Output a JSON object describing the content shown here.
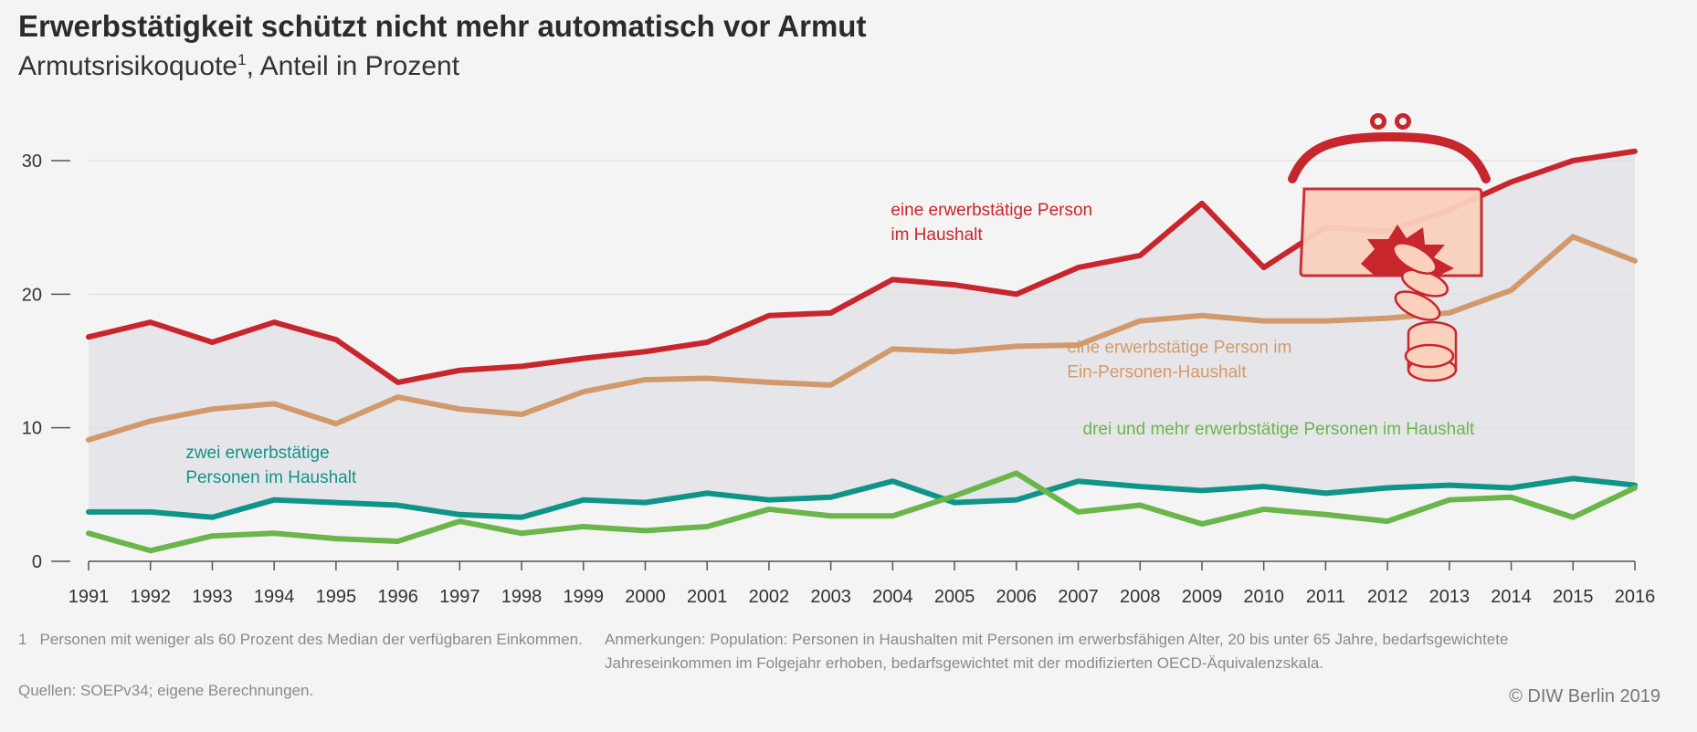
{
  "title": "Erwerbstätigkeit schützt nicht mehr automatisch vor Armut",
  "subtitle": "Armutsrisikoquote",
  "subtitle_footnote_mark": "1",
  "subtitle_suffix": ", Anteil in Prozent",
  "footnote": {
    "number": "1",
    "text": "Personen mit weniger als 60 Prozent des Median der verfügbaren Einkommen."
  },
  "notes": "Anmerkungen: Population: Personen in Haushalten mit Personen im erwerbsfähigen Alter, 20 bis unter 65 Jahre, bedarfsgewichtete Jahreseinkommen im Folgejahr erhoben, bedarfsgewichtet mit der modifizierten OECD-Äquivalenzskala.",
  "sources": "Quellen: SOEPv34; eigene Berechnungen.",
  "copyright": "© DIW Berlin 2019",
  "chart_data": {
    "type": "line",
    "x": [
      1991,
      1992,
      1993,
      1994,
      1995,
      1996,
      1997,
      1998,
      1999,
      2000,
      2001,
      2002,
      2003,
      2004,
      2005,
      2006,
      2007,
      2008,
      2009,
      2010,
      2011,
      2012,
      2013,
      2014,
      2015,
      2016
    ],
    "x_tick_labels": [
      "1991",
      "1992",
      "1993",
      "1994",
      "1995",
      "1996",
      "1997",
      "1998",
      "1999",
      "2000",
      "2001",
      "2002",
      "2003",
      "2004",
      "2005",
      "2006",
      "2007",
      "2008",
      "2009",
      "2010",
      "2011",
      "2012",
      "2013",
      "2014",
      "2015",
      "2016"
    ],
    "ylim": [
      0,
      30
    ],
    "y_ticks": [
      0,
      10,
      20,
      30
    ],
    "y_tick_labels": [
      "0",
      "10",
      "20",
      "30"
    ],
    "grid": true,
    "shaded_area_between": [
      "eine erwerbstätige Person im Haushalt",
      "zwei erwerbstätige Personen im Haushalt"
    ],
    "series": [
      {
        "name": "eine erwerbstätige Person im Haushalt",
        "label_lines": [
          "eine erwerbstätige Person",
          "im Haushalt"
        ],
        "color": "#c8262d",
        "values": [
          16.8,
          17.9,
          16.4,
          17.9,
          16.6,
          13.4,
          14.3,
          14.6,
          15.2,
          15.7,
          16.4,
          18.4,
          18.6,
          21.1,
          20.7,
          20.0,
          22.0,
          22.9,
          26.8,
          22.0,
          25.0,
          24.7,
          26.3,
          28.4,
          30.0,
          30.7
        ]
      },
      {
        "name": "eine erwerbstätige Person im Ein-Personen-Haushalt",
        "label_lines": [
          "eine erwerbstätige Person im",
          "Ein-Personen-Haushalt"
        ],
        "color": "#d29a6c",
        "values": [
          9.1,
          10.5,
          11.4,
          11.8,
          10.3,
          12.3,
          11.4,
          11.0,
          12.7,
          13.6,
          13.7,
          13.4,
          13.2,
          15.9,
          15.7,
          16.1,
          16.2,
          18.0,
          18.4,
          18.0,
          18.0,
          18.2,
          18.6,
          20.3,
          24.3,
          22.5
        ]
      },
      {
        "name": "zwei erwerbstätige Personen im Haushalt",
        "label_lines": [
          "zwei erwerbstätige",
          "Personen im Haushalt"
        ],
        "color": "#0f9488",
        "values": [
          3.7,
          3.7,
          3.3,
          4.6,
          4.4,
          4.2,
          3.5,
          3.3,
          4.6,
          4.4,
          5.1,
          4.6,
          4.8,
          6.0,
          4.4,
          4.6,
          6.0,
          5.6,
          5.3,
          5.6,
          5.1,
          5.5,
          5.7,
          5.5,
          6.2,
          5.7
        ]
      },
      {
        "name": "drei und mehr erwerbstätige Personen im Haushalt",
        "label_lines": [
          "drei und mehr erwerbstätige Personen im Haushalt"
        ],
        "color": "#6ab64a",
        "values": [
          2.1,
          0.8,
          1.9,
          2.1,
          1.7,
          1.5,
          3.0,
          2.1,
          2.6,
          2.3,
          2.6,
          3.9,
          3.4,
          3.4,
          4.9,
          6.6,
          3.7,
          4.2,
          2.8,
          3.9,
          3.5,
          3.0,
          4.6,
          4.8,
          3.3,
          5.5
        ]
      }
    ]
  },
  "icon": "purse-with-coins-icon",
  "colors": {
    "background": "#f4f4f4",
    "shaded_area": "#e6e6ea",
    "axis": "#555555",
    "grid": "#dddddd",
    "purse": "#c8262d",
    "purse_fill": "#fbd0bd"
  }
}
